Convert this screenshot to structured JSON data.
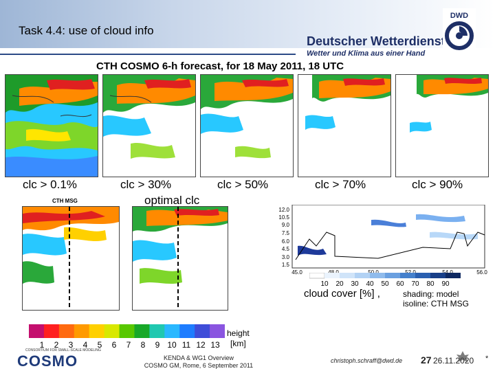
{
  "slide": {
    "title": "Task 4.4:   use of cloud info",
    "panel_title": "CTH COSMO 6-h forecast, for 18 May 2011, 18 UTC",
    "logo_line1": "Deutscher Wetterdienst",
    "logo_line2": "Wetter und Klima aus einer Hand",
    "logo_badge": "DWD"
  },
  "maps": {
    "threshold_labels": [
      "clc > 0.1%",
      "clc > 30%",
      "clc > 50%",
      "clc > 70%",
      "clc > 90%"
    ],
    "optimal_label": "optimal  clc",
    "cth_msg_label": "CTH MSG"
  },
  "cross_section": {
    "y_ticks": [
      "12.0",
      "10.5",
      "9.0",
      "7.5",
      "6.0",
      "4.5",
      "3.0",
      "1.5"
    ],
    "x_ticks": [
      "45.0",
      "48.0",
      "50.0",
      "52.0",
      "54.0",
      "56.0"
    ],
    "colorbar_ticks": [
      "10",
      "20",
      "30",
      "40",
      "50",
      "60",
      "70",
      "80",
      "90"
    ],
    "cover_label": "cloud cover [%] ,",
    "shading_label": "shading: model",
    "isoline_label": "isoline: CTH MSG"
  },
  "height_colorbar": {
    "ticks": [
      "1",
      "2",
      "3",
      "4",
      "5",
      "6",
      "7",
      "8",
      "9",
      "10",
      "11",
      "12",
      "13"
    ],
    "unit_line1": "height",
    "unit_line2": "[km]",
    "colors": [
      "#c40f6e",
      "#ff2020",
      "#ff6a10",
      "#ff9a00",
      "#ffd000",
      "#d8e800",
      "#58c800",
      "#18a828",
      "#20c8b0",
      "#2ab8ff",
      "#1e7dff",
      "#3f4dd8",
      "#8a55e0"
    ]
  },
  "footer": {
    "cosmo_logo": "COSMO",
    "cosmo_small": "CONSORTIUM FOR SMALL-SCALE MODELING",
    "kenda_line1": "KENDA & WG1 Overview",
    "kenda_line2": "COSMO GM, Rome, 6 September 2011",
    "email": "christoph.schraff@dwd.de",
    "page_number": "27",
    "date": "26.11.2020",
    "star": "*"
  }
}
